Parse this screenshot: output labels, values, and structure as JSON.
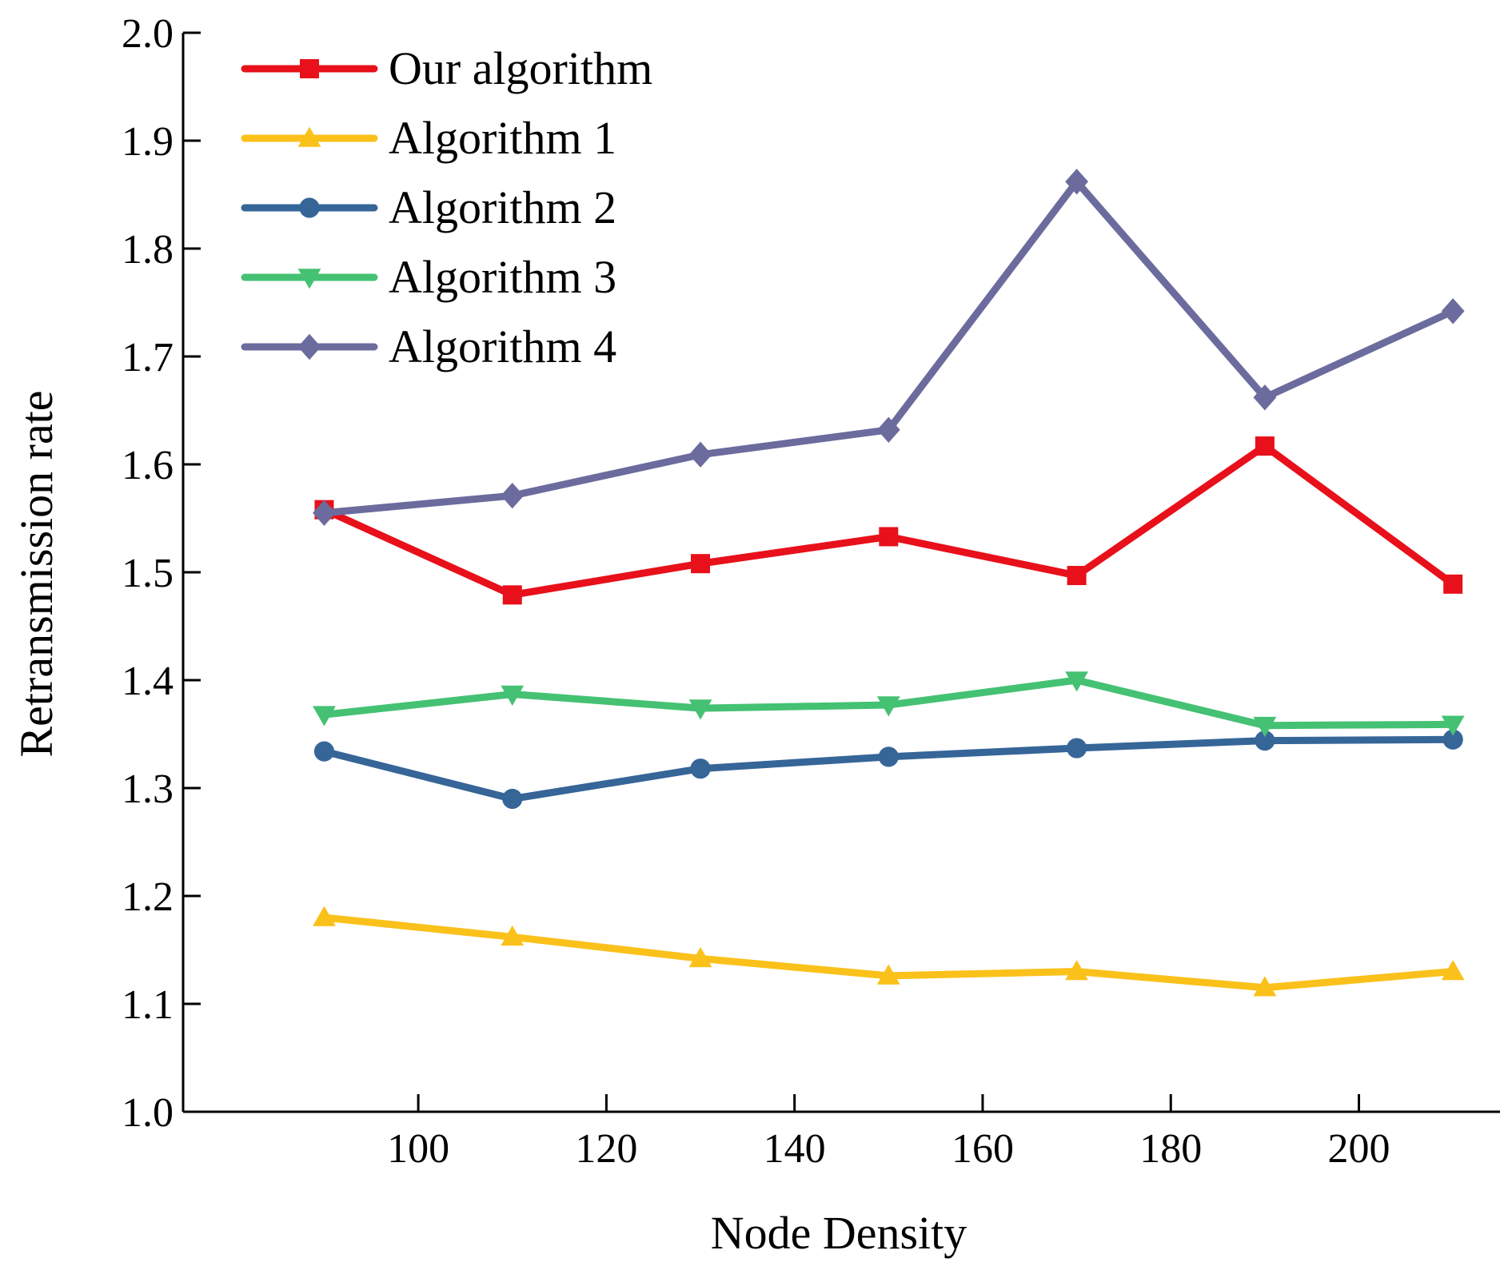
{
  "chart_data": {
    "type": "line",
    "title": "",
    "xlabel": "Node Density",
    "ylabel": "Retransmission rate",
    "x": [
      90,
      110,
      130,
      150,
      170,
      190,
      210
    ],
    "xlim": [
      75,
      215
    ],
    "ylim": [
      1.0,
      2.0
    ],
    "xticks": [
      100,
      120,
      140,
      160,
      180,
      200
    ],
    "xtick_labels": [
      "100",
      "120",
      "140",
      "160",
      "180",
      "200"
    ],
    "yticks": [
      1.0,
      1.1,
      1.2,
      1.3,
      1.4,
      1.5,
      1.6,
      1.7,
      1.8,
      1.9,
      2.0
    ],
    "ytick_labels": [
      "1.0",
      "1.1",
      "1.2",
      "1.3",
      "1.4",
      "1.5",
      "1.6",
      "1.7",
      "1.8",
      "1.9",
      "2.0"
    ],
    "grid": false,
    "legend_position": "top-left",
    "series": [
      {
        "name": "Our algorithm",
        "color": "#e8101a",
        "marker": "square",
        "values": [
          1.558,
          1.479,
          1.508,
          1.533,
          1.497,
          1.617,
          1.489
        ]
      },
      {
        "name": "Algorithm 1",
        "color": "#fbc11b",
        "marker": "triangle-up",
        "values": [
          1.18,
          1.162,
          1.142,
          1.126,
          1.13,
          1.115,
          1.13
        ]
      },
      {
        "name": "Algorithm 2",
        "color": "#366598",
        "marker": "circle",
        "values": [
          1.334,
          1.29,
          1.318,
          1.329,
          1.337,
          1.344,
          1.345
        ]
      },
      {
        "name": "Algorithm 3",
        "color": "#45c173",
        "marker": "triangle-down",
        "values": [
          1.368,
          1.387,
          1.374,
          1.377,
          1.4,
          1.358,
          1.359
        ]
      },
      {
        "name": "Algorithm 4",
        "color": "#6c6b9d",
        "marker": "diamond",
        "values": [
          1.555,
          1.571,
          1.609,
          1.632,
          1.862,
          1.662,
          1.742
        ]
      }
    ]
  }
}
